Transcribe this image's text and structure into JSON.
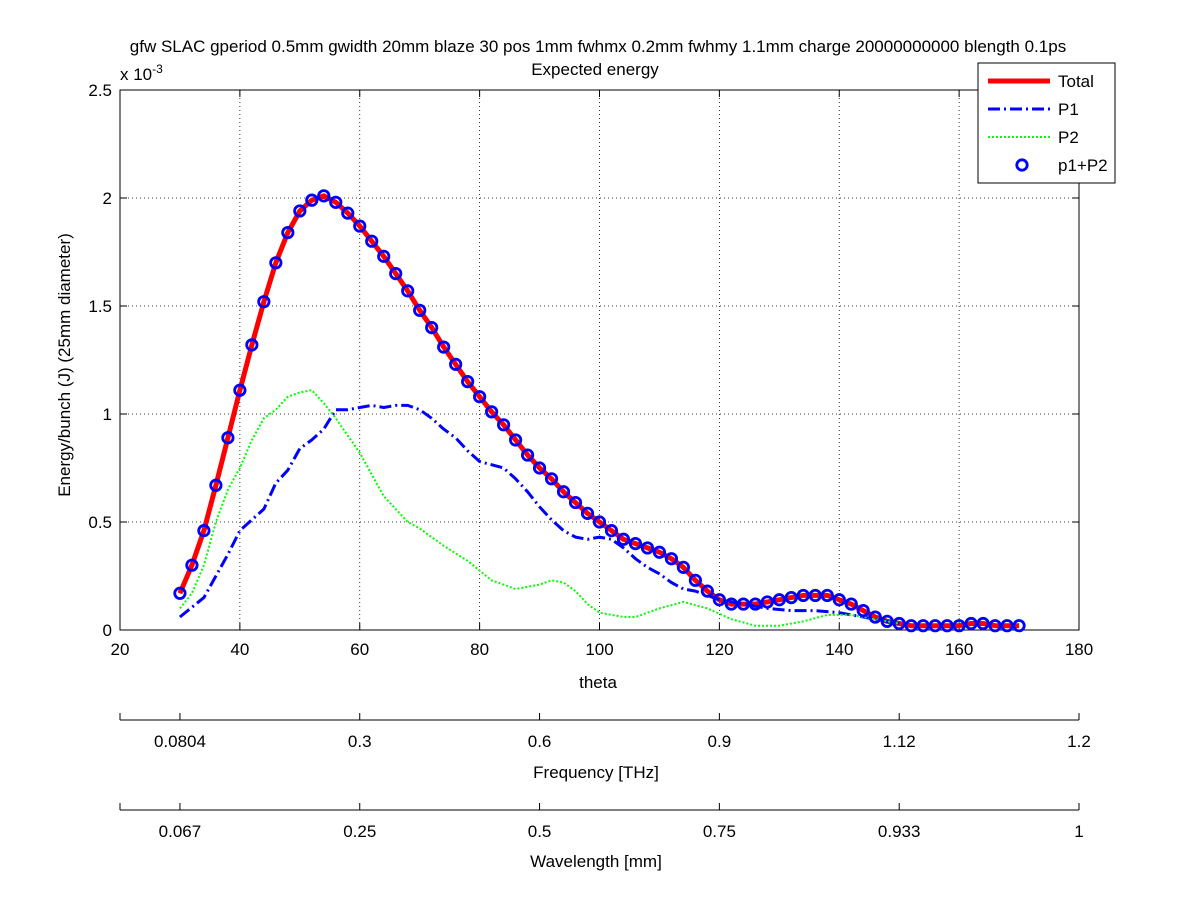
{
  "chart_data": {
    "type": "line",
    "title": "gfw SLAC gperiod 0.5mm gwidth 20mm blaze 30 pos 1mm fwhmx 0.2mm fwhmy 1.1mm charge 20000000000 blength 0.1ps",
    "subtitle": "Expected energy",
    "xlabel": "theta",
    "ylabel": "Energy/bunch (J) (25mm diameter)",
    "y_exponent_label": "x 10",
    "y_exponent_power": "-3",
    "xlim": [
      20,
      180
    ],
    "ylim": [
      0,
      2.5
    ],
    "grid": true,
    "legend_position": "top-right",
    "x_ticks": [
      "20",
      "40",
      "60",
      "80",
      "100",
      "120",
      "140",
      "160",
      "180"
    ],
    "y_ticks": [
      "0",
      "0.5",
      "1",
      "1.5",
      "2",
      "2.5"
    ],
    "secondary_axes": [
      {
        "label": "Frequency [THz]",
        "ticks": [
          {
            "theta": 30,
            "label": "0.0804"
          },
          {
            "theta": 60,
            "label": "0.3"
          },
          {
            "theta": 90,
            "label": "0.6"
          },
          {
            "theta": 120,
            "label": "0.9"
          },
          {
            "theta": 150,
            "label": "1.12"
          },
          {
            "theta": 180,
            "label": "1.2"
          }
        ]
      },
      {
        "label": "Wavelength [mm]",
        "ticks": [
          {
            "theta": 30,
            "label": "0.067"
          },
          {
            "theta": 60,
            "label": "0.25"
          },
          {
            "theta": 90,
            "label": "0.5"
          },
          {
            "theta": 120,
            "label": "0.75"
          },
          {
            "theta": 150,
            "label": "0.933"
          },
          {
            "theta": 180,
            "label": "1"
          }
        ]
      }
    ],
    "series": [
      {
        "name": "Total",
        "color": "#ff0000",
        "style": "solid",
        "x": [
          30,
          32,
          34,
          36,
          38,
          40,
          42,
          44,
          46,
          48,
          50,
          52,
          54,
          56,
          58,
          60,
          62,
          64,
          66,
          68,
          70,
          72,
          74,
          76,
          78,
          80,
          82,
          84,
          86,
          88,
          90,
          92,
          94,
          96,
          98,
          100,
          102,
          104,
          106,
          108,
          110,
          112,
          114,
          116,
          118,
          120,
          122,
          124,
          126,
          128,
          130,
          132,
          134,
          136,
          138,
          140,
          142,
          144,
          146,
          148,
          150,
          152,
          154,
          156,
          158,
          160,
          162,
          164,
          166,
          168,
          170
        ],
        "y": [
          0.17,
          0.3,
          0.46,
          0.67,
          0.89,
          1.11,
          1.32,
          1.52,
          1.7,
          1.84,
          1.94,
          1.99,
          2.01,
          1.98,
          1.93,
          1.87,
          1.8,
          1.73,
          1.65,
          1.57,
          1.48,
          1.4,
          1.31,
          1.23,
          1.15,
          1.08,
          1.01,
          0.95,
          0.88,
          0.81,
          0.75,
          0.7,
          0.64,
          0.59,
          0.54,
          0.5,
          0.46,
          0.42,
          0.4,
          0.38,
          0.36,
          0.33,
          0.29,
          0.23,
          0.18,
          0.14,
          0.12,
          0.12,
          0.12,
          0.13,
          0.14,
          0.15,
          0.16,
          0.16,
          0.16,
          0.14,
          0.12,
          0.09,
          0.06,
          0.04,
          0.03,
          0.02,
          0.02,
          0.02,
          0.02,
          0.02,
          0.03,
          0.03,
          0.02,
          0.02,
          0.02
        ]
      },
      {
        "name": "P1",
        "color": "#0000ff",
        "style": "dashdot",
        "x": [
          30,
          34,
          38,
          40,
          42,
          44,
          46,
          48,
          50,
          52,
          54,
          56,
          58,
          60,
          62,
          64,
          66,
          68,
          70,
          72,
          74,
          76,
          78,
          80,
          84,
          86,
          88,
          90,
          92,
          94,
          96,
          98,
          100,
          102,
          104,
          106,
          108,
          110,
          112,
          114,
          116,
          118,
          120,
          124,
          128,
          132,
          136,
          140,
          144,
          148,
          150
        ],
        "y": [
          0.06,
          0.15,
          0.35,
          0.46,
          0.51,
          0.56,
          0.68,
          0.74,
          0.84,
          0.88,
          0.93,
          1.02,
          1.02,
          1.03,
          1.04,
          1.03,
          1.04,
          1.04,
          1.02,
          0.98,
          0.93,
          0.89,
          0.83,
          0.78,
          0.75,
          0.7,
          0.64,
          0.57,
          0.51,
          0.46,
          0.43,
          0.42,
          0.43,
          0.42,
          0.38,
          0.33,
          0.29,
          0.26,
          0.22,
          0.19,
          0.18,
          0.16,
          0.14,
          0.12,
          0.1,
          0.09,
          0.09,
          0.08,
          0.06,
          0.04,
          0.03
        ]
      },
      {
        "name": "P2",
        "color": "#00ff00",
        "style": "dotted",
        "x": [
          30,
          32,
          34,
          36,
          38,
          40,
          42,
          44,
          46,
          48,
          50,
          52,
          54,
          56,
          58,
          60,
          62,
          64,
          66,
          68,
          70,
          74,
          78,
          82,
          86,
          88,
          90,
          92,
          94,
          96,
          98,
          100,
          102,
          104,
          106,
          110,
          114,
          118,
          122,
          126,
          130,
          134,
          138,
          142,
          146,
          150
        ],
        "y": [
          0.1,
          0.17,
          0.3,
          0.5,
          0.65,
          0.75,
          0.88,
          0.98,
          1.02,
          1.08,
          1.1,
          1.11,
          1.05,
          0.98,
          0.9,
          0.82,
          0.72,
          0.62,
          0.56,
          0.5,
          0.47,
          0.39,
          0.32,
          0.23,
          0.19,
          0.2,
          0.21,
          0.23,
          0.22,
          0.18,
          0.12,
          0.08,
          0.07,
          0.06,
          0.06,
          0.1,
          0.13,
          0.1,
          0.05,
          0.02,
          0.02,
          0.04,
          0.07,
          0.07,
          0.05,
          0.03
        ]
      },
      {
        "name": "p1+P2",
        "color": "#0000ff",
        "style": "markers",
        "x": [
          30,
          32,
          34,
          36,
          38,
          40,
          42,
          44,
          46,
          48,
          50,
          52,
          54,
          56,
          58,
          60,
          62,
          64,
          66,
          68,
          70,
          72,
          74,
          76,
          78,
          80,
          82,
          84,
          86,
          88,
          90,
          92,
          94,
          96,
          98,
          100,
          102,
          104,
          106,
          108,
          110,
          112,
          114,
          116,
          118,
          120,
          122,
          124,
          126,
          128,
          130,
          132,
          134,
          136,
          138,
          140,
          142,
          144,
          146,
          148,
          150,
          152,
          154,
          156,
          158,
          160,
          162,
          164,
          166,
          168,
          170
        ],
        "y": [
          0.17,
          0.3,
          0.46,
          0.67,
          0.89,
          1.11,
          1.32,
          1.52,
          1.7,
          1.84,
          1.94,
          1.99,
          2.01,
          1.98,
          1.93,
          1.87,
          1.8,
          1.73,
          1.65,
          1.57,
          1.48,
          1.4,
          1.31,
          1.23,
          1.15,
          1.08,
          1.01,
          0.95,
          0.88,
          0.81,
          0.75,
          0.7,
          0.64,
          0.59,
          0.54,
          0.5,
          0.46,
          0.42,
          0.4,
          0.38,
          0.36,
          0.33,
          0.29,
          0.23,
          0.18,
          0.14,
          0.12,
          0.12,
          0.12,
          0.13,
          0.14,
          0.15,
          0.16,
          0.16,
          0.16,
          0.14,
          0.12,
          0.09,
          0.06,
          0.04,
          0.03,
          0.02,
          0.02,
          0.02,
          0.02,
          0.02,
          0.03,
          0.03,
          0.02,
          0.02,
          0.02
        ]
      }
    ]
  }
}
